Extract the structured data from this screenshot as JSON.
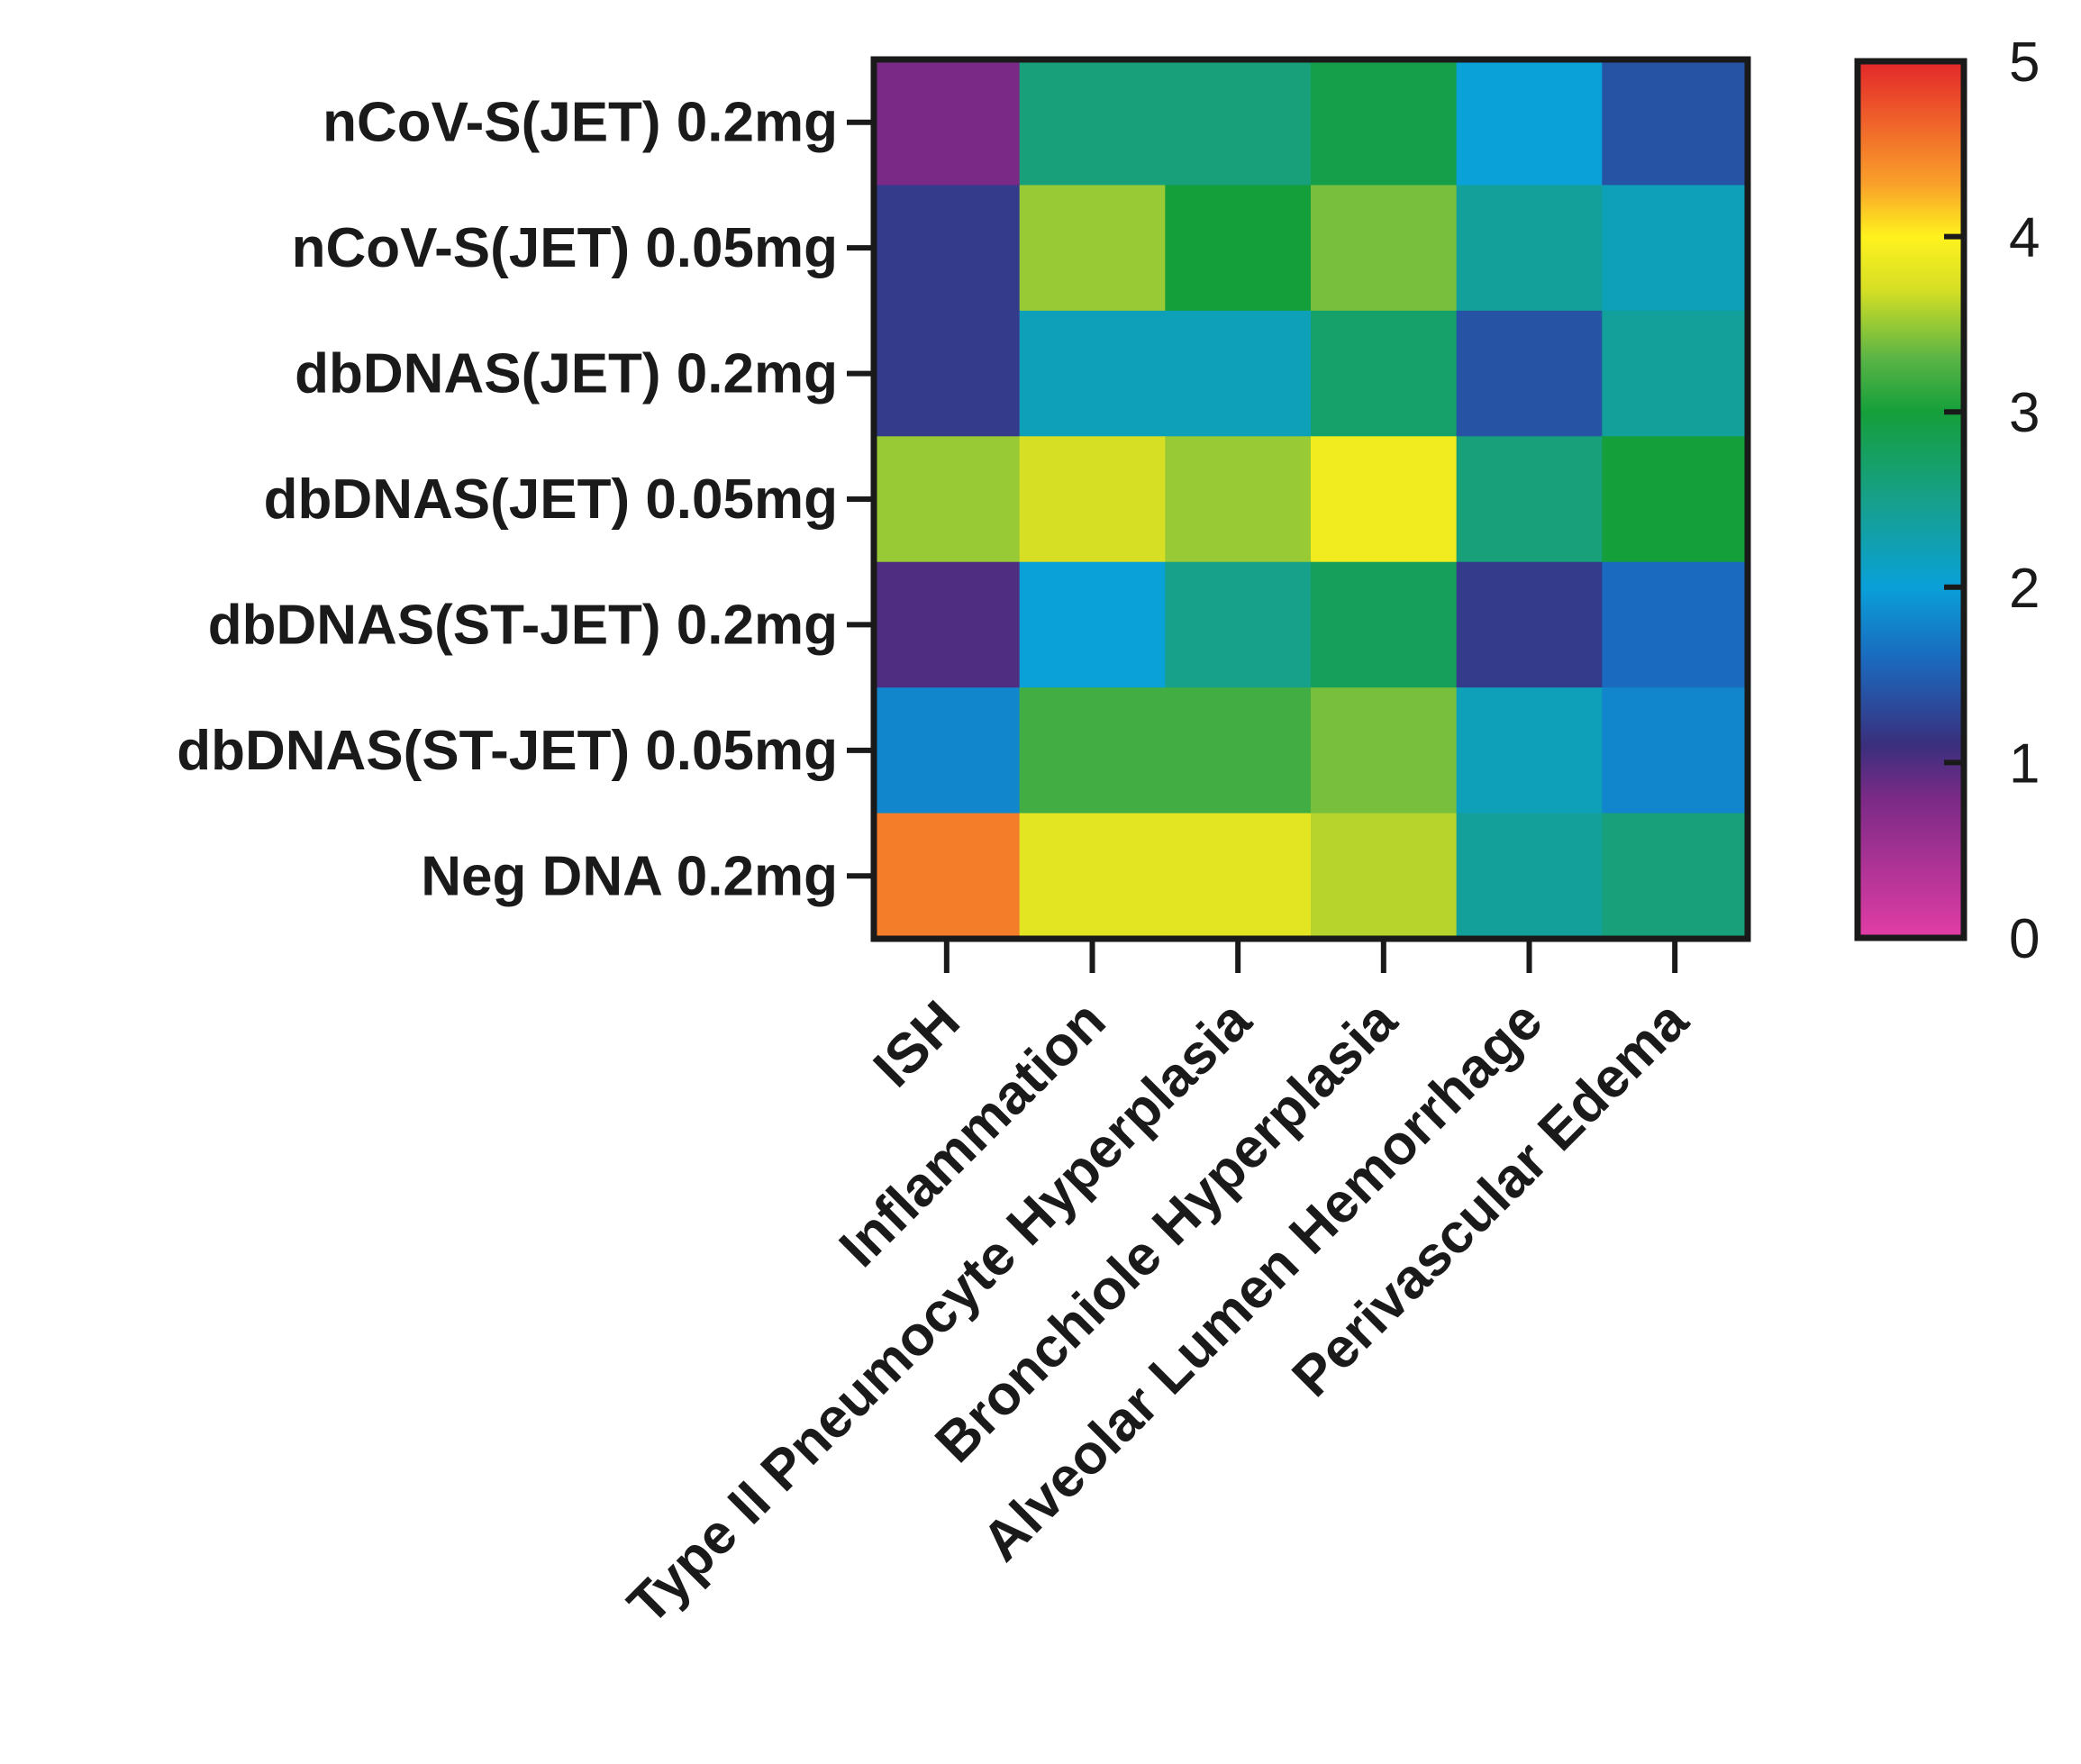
{
  "chart_data": {
    "type": "heatmap",
    "title": "",
    "xlabel": "",
    "ylabel": "",
    "rows": [
      "nCoV-S(JET) 0.2mg",
      "nCoV-S(JET) 0.05mg",
      "dbDNAS(JET) 0.2mg",
      "dbDNAS(JET) 0.05mg",
      "dbDNAS(ST-JET) 0.2mg",
      "dbDNAS(ST-JET) 0.05mg",
      "Neg DNA 0.2mg"
    ],
    "columns": [
      "ISH",
      "Inflammation",
      "Type II Pneumocyte Hyperplasia",
      "Bronchiole Hyperplasia",
      "Alveolar Lumen Hemorrhage",
      "Perivascular Edema"
    ],
    "values": [
      [
        0.8,
        2.6,
        2.6,
        2.9,
        2.0,
        1.4
      ],
      [
        1.2,
        3.5,
        3.0,
        3.4,
        2.4,
        2.2
      ],
      [
        1.2,
        2.2,
        2.2,
        2.7,
        1.4,
        2.4
      ],
      [
        3.5,
        3.7,
        3.5,
        3.9,
        2.6,
        3.0
      ],
      [
        1.0,
        2.0,
        2.5,
        2.8,
        1.2,
        1.6
      ],
      [
        1.8,
        3.2,
        3.2,
        3.4,
        2.2,
        1.8
      ],
      [
        4.5,
        3.8,
        3.8,
        3.6,
        2.4,
        2.6
      ]
    ],
    "colorbar": {
      "min": 0,
      "max": 5,
      "ticks": [
        0,
        1,
        2,
        3,
        4,
        5
      ],
      "tick_labels": [
        "0",
        "1",
        "2",
        "3",
        "4",
        "5"
      ],
      "colors": [
        "#e23da5",
        "#7a2a86",
        "#3a2f7d",
        "#1a6bbf",
        "#0aa0d8",
        "#17a08a",
        "#159f3a",
        "#59b446",
        "#d6df24",
        "#fff21e",
        "#f9a02a",
        "#ee5a2a",
        "#e3272a"
      ],
      "color_positions": [
        0,
        0.8,
        1.1,
        1.6,
        2.0,
        2.5,
        3.0,
        3.3,
        3.7,
        4.0,
        4.3,
        4.7,
        5.0
      ]
    }
  }
}
